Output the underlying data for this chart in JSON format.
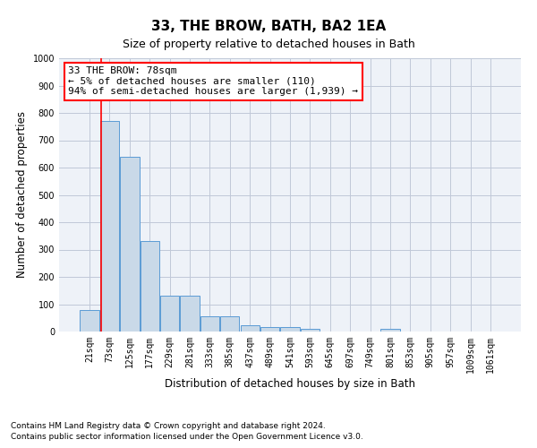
{
  "title": "33, THE BROW, BATH, BA2 1EA",
  "subtitle": "Size of property relative to detached houses in Bath",
  "xlabel": "Distribution of detached houses by size in Bath",
  "ylabel": "Number of detached properties",
  "footnote1": "Contains HM Land Registry data © Crown copyright and database right 2024.",
  "footnote2": "Contains public sector information licensed under the Open Government Licence v3.0.",
  "categories": [
    "21sqm",
    "73sqm",
    "125sqm",
    "177sqm",
    "229sqm",
    "281sqm",
    "333sqm",
    "385sqm",
    "437sqm",
    "489sqm",
    "541sqm",
    "593sqm",
    "645sqm",
    "697sqm",
    "749sqm",
    "801sqm",
    "853sqm",
    "905sqm",
    "957sqm",
    "1009sqm",
    "1061sqm"
  ],
  "values": [
    80,
    770,
    640,
    330,
    130,
    130,
    55,
    55,
    22,
    18,
    15,
    10,
    0,
    0,
    0,
    10,
    0,
    0,
    0,
    0,
    0
  ],
  "bar_color": "#c9d9e8",
  "bar_edge_color": "#5b9bd5",
  "ylim": [
    0,
    1000
  ],
  "yticks": [
    0,
    100,
    200,
    300,
    400,
    500,
    600,
    700,
    800,
    900,
    1000
  ],
  "grid_color": "#c0c8d8",
  "bg_color": "#eef2f8",
  "annotation_text1": "33 THE BROW: 78sqm",
  "annotation_text2": "← 5% of detached houses are smaller (110)",
  "annotation_text3": "94% of semi-detached houses are larger (1,939) →",
  "annotation_box_color": "white",
  "annotation_border_color": "red",
  "vline_color": "red",
  "title_fontsize": 11,
  "subtitle_fontsize": 9,
  "tick_fontsize": 7,
  "label_fontsize": 8.5,
  "annotation_fontsize": 8,
  "footnote_fontsize": 6.5
}
